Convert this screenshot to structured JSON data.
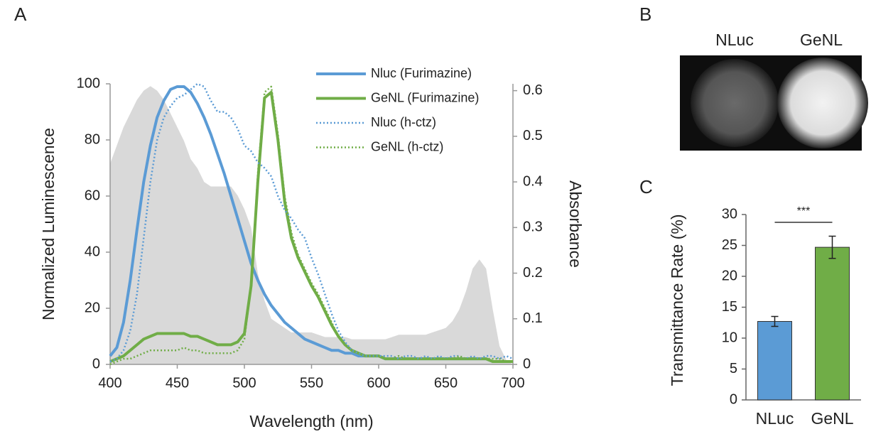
{
  "chart_data": [
    {
      "type": "line",
      "panel": "A",
      "xlabel": "Wavelength (nm)",
      "ylabel": "Normalized Luminescence",
      "y2label": "Absorbance",
      "x": [
        400,
        405,
        410,
        415,
        420,
        425,
        430,
        435,
        440,
        445,
        450,
        455,
        460,
        465,
        470,
        475,
        480,
        485,
        490,
        495,
        500,
        505,
        510,
        515,
        520,
        525,
        530,
        535,
        540,
        545,
        550,
        555,
        560,
        565,
        570,
        575,
        580,
        585,
        590,
        595,
        600,
        605,
        610,
        615,
        620,
        625,
        630,
        635,
        640,
        645,
        650,
        655,
        660,
        665,
        670,
        675,
        680,
        685,
        690,
        695,
        700
      ],
      "xlim": [
        400,
        700
      ],
      "xticks": [
        400,
        450,
        500,
        550,
        600,
        650,
        700
      ],
      "ylim": [
        0,
        100
      ],
      "yticks": [
        0,
        20,
        40,
        60,
        80,
        100
      ],
      "y2lim": [
        0,
        0.615
      ],
      "y2ticks": [
        0,
        0.1,
        0.2,
        0.3,
        0.4,
        0.5,
        0.6
      ],
      "area": {
        "color": "#d9d9d9",
        "axis": "y2",
        "values": [
          0.44,
          0.48,
          0.52,
          0.55,
          0.58,
          0.6,
          0.61,
          0.6,
          0.58,
          0.55,
          0.52,
          0.49,
          0.45,
          0.43,
          0.4,
          0.39,
          0.39,
          0.39,
          0.39,
          0.37,
          0.34,
          0.3,
          0.2,
          0.14,
          0.1,
          0.09,
          0.08,
          0.07,
          0.07,
          0.07,
          0.07,
          0.065,
          0.06,
          0.06,
          0.06,
          0.06,
          0.055,
          0.055,
          0.055,
          0.055,
          0.055,
          0.055,
          0.06,
          0.065,
          0.065,
          0.065,
          0.065,
          0.065,
          0.07,
          0.075,
          0.08,
          0.095,
          0.12,
          0.16,
          0.21,
          0.23,
          0.21,
          0.12,
          0.04,
          0.01,
          0
        ]
      },
      "series": [
        {
          "name": "Nluc (Furimazine)",
          "color": "#5b9bd5",
          "style": "solid",
          "values": [
            3,
            6,
            15,
            30,
            48,
            65,
            78,
            88,
            94,
            98,
            99,
            99,
            97,
            93,
            88,
            82,
            75,
            68,
            60,
            52,
            44,
            36,
            30,
            25,
            21,
            18,
            15,
            13,
            11,
            9,
            8,
            7,
            6,
            5,
            5,
            4,
            4,
            3,
            3,
            3,
            3,
            2,
            2,
            2,
            2,
            2,
            2,
            2,
            2,
            2,
            2,
            2,
            2,
            2,
            2,
            2,
            2,
            1,
            1,
            1,
            1
          ]
        },
        {
          "name": "GeNL (Furimazine)",
          "color": "#70ad47",
          "style": "solid",
          "values": [
            1,
            2,
            3,
            5,
            7,
            9,
            10,
            11,
            11,
            11,
            11,
            11,
            10,
            10,
            9,
            8,
            7,
            7,
            7,
            8,
            11,
            28,
            65,
            95,
            97,
            80,
            58,
            45,
            38,
            33,
            28,
            24,
            19,
            14,
            10,
            7,
            5,
            4,
            3,
            3,
            3,
            2,
            2,
            2,
            2,
            2,
            2,
            2,
            2,
            2,
            2,
            2,
            2,
            2,
            2,
            2,
            2,
            1,
            1,
            1,
            1
          ]
        },
        {
          "name": "Nluc (h-ctz)",
          "color": "#5b9bd5",
          "style": "dotted",
          "values": [
            1,
            2,
            5,
            12,
            25,
            45,
            65,
            80,
            88,
            92,
            95,
            96,
            98,
            100,
            99,
            94,
            90,
            90,
            88,
            84,
            78,
            76,
            72,
            70,
            67,
            60,
            55,
            52,
            48,
            45,
            38,
            32,
            25,
            18,
            12,
            8,
            5,
            4,
            3,
            3,
            3,
            3,
            3,
            2,
            3,
            3,
            2,
            3,
            2,
            3,
            2,
            3,
            3,
            2,
            3,
            2,
            3,
            3,
            2,
            3,
            2
          ]
        },
        {
          "name": "GeNL (h-ctz)",
          "color": "#70ad47",
          "style": "dotted",
          "values": [
            0,
            1,
            2,
            2,
            3,
            4,
            5,
            5,
            5,
            5,
            5,
            6,
            5,
            5,
            4,
            4,
            4,
            4,
            4,
            5,
            9,
            28,
            68,
            97,
            99,
            82,
            60,
            47,
            39,
            34,
            29,
            25,
            20,
            15,
            10,
            7,
            5,
            4,
            3,
            3,
            3,
            2,
            2,
            3,
            2,
            2,
            2,
            2,
            2,
            2,
            2,
            2,
            3,
            2,
            2,
            2,
            2,
            2,
            2,
            1,
            1
          ]
        }
      ]
    },
    {
      "type": "image",
      "panel": "B",
      "labels": [
        "NLuc",
        "GeNL"
      ]
    },
    {
      "type": "bar",
      "panel": "C",
      "ylabel": "Transmittance Rate (%)",
      "categories": [
        "NLuc",
        "GeNL"
      ],
      "values": [
        12.7,
        24.7
      ],
      "errors": [
        0.8,
        1.8
      ],
      "colors": [
        "#5b9bd5",
        "#70ad47"
      ],
      "ylim": [
        0,
        30
      ],
      "yticks": [
        0,
        5,
        10,
        15,
        20,
        25,
        30
      ],
      "annotation": "***"
    }
  ]
}
